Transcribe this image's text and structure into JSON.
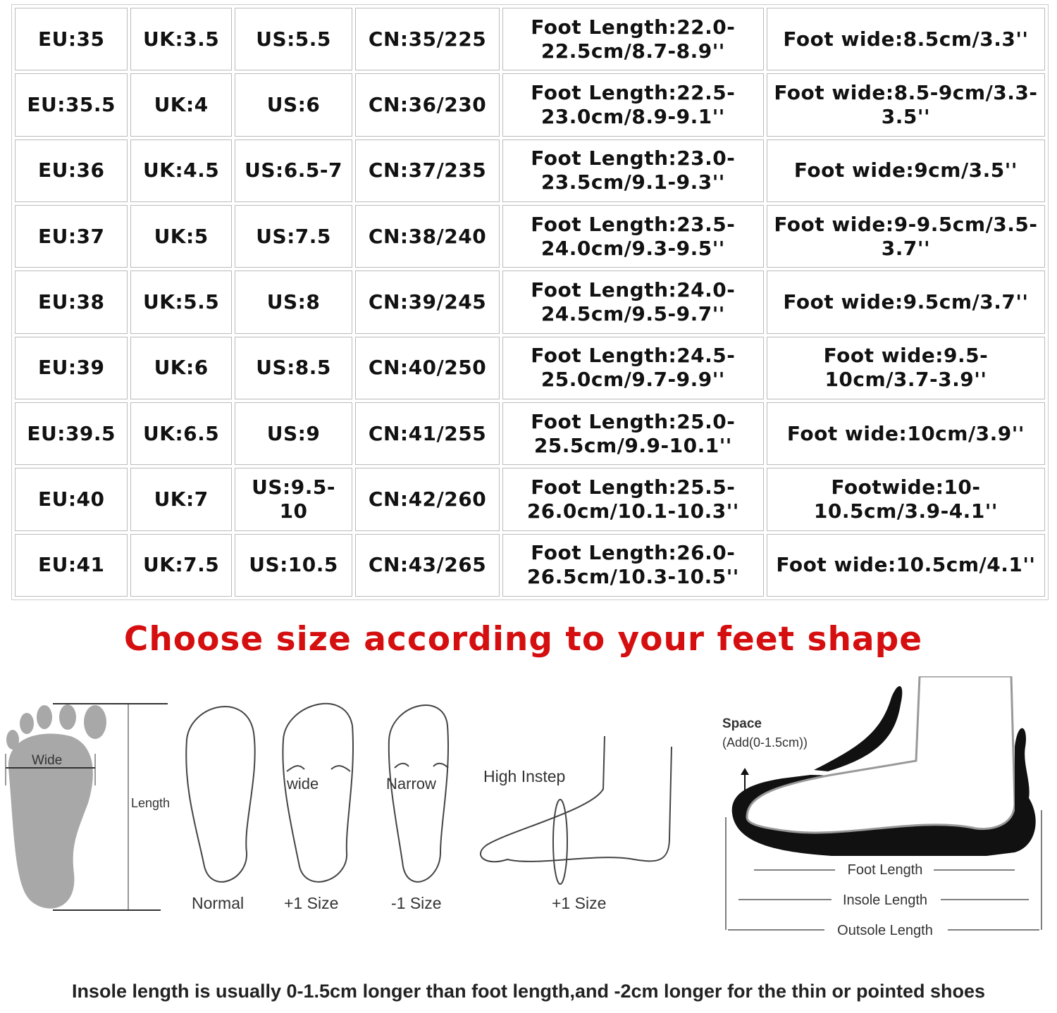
{
  "size_chart": {
    "rows": [
      [
        "EU:35",
        "UK:3.5",
        "US:5.5",
        "CN:35/225",
        "Foot Length:22.0-22.5cm/8.7-8.9''",
        "Foot wide:8.5cm/3.3''"
      ],
      [
        "EU:35.5",
        "UK:4",
        "US:6",
        "CN:36/230",
        "Foot Length:22.5-23.0cm/8.9-9.1''",
        "Foot wide:8.5-9cm/3.3-3.5''"
      ],
      [
        "EU:36",
        "UK:4.5",
        "US:6.5-7",
        "CN:37/235",
        "Foot Length:23.0-23.5cm/9.1-9.3''",
        "Foot wide:9cm/3.5''"
      ],
      [
        "EU:37",
        "UK:5",
        "US:7.5",
        "CN:38/240",
        "Foot Length:23.5-24.0cm/9.3-9.5''",
        "Foot wide:9-9.5cm/3.5-3.7''"
      ],
      [
        "EU:38",
        "UK:5.5",
        "US:8",
        "CN:39/245",
        "Foot Length:24.0-24.5cm/9.5-9.7''",
        "Foot wide:9.5cm/3.7''"
      ],
      [
        "EU:39",
        "UK:6",
        "US:8.5",
        "CN:40/250",
        "Foot Length:24.5-25.0cm/9.7-9.9''",
        "Foot wide:9.5-10cm/3.7-3.9''"
      ],
      [
        "EU:39.5",
        "UK:6.5",
        "US:9",
        "CN:41/255",
        "Foot Length:25.0-25.5cm/9.9-10.1''",
        "Foot wide:10cm/3.9''"
      ],
      [
        "EU:40",
        "UK:7",
        "US:9.5-10",
        "CN:42/260",
        "Foot Length:25.5-26.0cm/10.1-10.3''",
        "Footwide:10-10.5cm/3.9-4.1''"
      ],
      [
        "EU:41",
        "UK:7.5",
        "US:10.5",
        "CN:43/265",
        "Foot Length:26.0-26.5cm/10.3-10.5''",
        "Foot wide:10.5cm/4.1''"
      ]
    ]
  },
  "title": "Choose size according to your feet shape",
  "title_color": "#d50f0f",
  "diagram": {
    "wide_label": "Wide",
    "length_label": "Length",
    "feet": [
      {
        "arrow_label": "",
        "caption": "Normal"
      },
      {
        "arrow_label": "wide",
        "caption": "+1 Size"
      },
      {
        "arrow_label": "Narrow",
        "caption": "-1 Size"
      }
    ],
    "instep_label": "High Instep",
    "instep_caption": "+1 Size",
    "space_label": "Space",
    "space_sub": "(Add(0-1.5cm))",
    "foot_length": "Foot Length",
    "insole_length": "Insole Length",
    "outsole_length": "Outsole Length"
  },
  "note": "Insole length is usually 0-1.5cm longer than foot length,and -2cm longer for the thin or pointed shoes"
}
